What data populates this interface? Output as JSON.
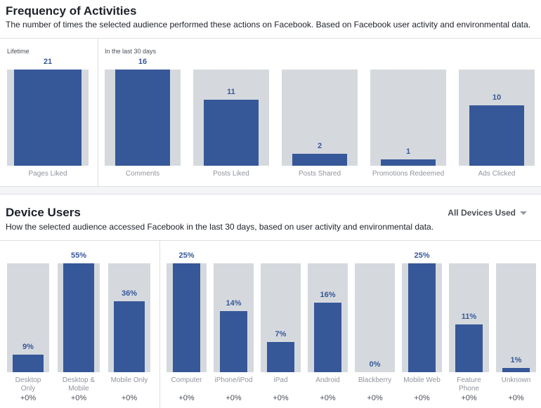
{
  "frequency": {
    "title": "Frequency of Activities",
    "subtitle": "The number of times the selected audience performed these actions on Facebook. Based on Facebook user activity and environmental data."
  },
  "devices": {
    "title": "Device Users",
    "subtitle": "How the selected audience accessed Facebook in the last 30 days, based on user activity and environmental data.",
    "dropdown_label": "All Devices Used"
  },
  "colors": {
    "bar": "#365899",
    "background_bar": "#d5d9de",
    "label": "#90949c"
  },
  "chart_data": [
    {
      "type": "bar",
      "group_label": "Lifetime",
      "categories": [
        "Pages Liked"
      ],
      "values": [
        21
      ],
      "value_labels": [
        "21"
      ],
      "ylim": [
        0,
        21
      ]
    },
    {
      "type": "bar",
      "group_label": "In the last 30 days",
      "categories": [
        "Comments",
        "Posts Liked",
        "Posts Shared",
        "Promotions Redeemed",
        "Ads Clicked"
      ],
      "values": [
        16,
        11,
        2,
        1,
        10
      ],
      "value_labels": [
        "16",
        "11",
        "2",
        "1",
        "10"
      ],
      "ylim": [
        0,
        16
      ]
    },
    {
      "type": "bar",
      "categories": [
        "Desktop Only",
        "Desktop & Mobile",
        "Mobile Only"
      ],
      "values": [
        9,
        55,
        36
      ],
      "value_labels": [
        "9%",
        "55%",
        "36%"
      ],
      "changes": [
        "+0%",
        "+0%",
        "+0%"
      ],
      "ylim": [
        0,
        55
      ]
    },
    {
      "type": "bar",
      "categories": [
        "Computer",
        "iPhone/iPod",
        "iPad",
        "Android",
        "Blackberry",
        "Mobile Web",
        "Feature Phone",
        "Unknown"
      ],
      "values": [
        25,
        14,
        7,
        16,
        0,
        25,
        11,
        1
      ],
      "value_labels": [
        "25%",
        "14%",
        "7%",
        "16%",
        "0%",
        "25%",
        "11%",
        "1%"
      ],
      "changes": [
        "+0%",
        "+0%",
        "+0%",
        "+0%",
        "+0%",
        "+0%",
        "+0%",
        "+0%"
      ],
      "ylim": [
        0,
        25
      ]
    }
  ]
}
